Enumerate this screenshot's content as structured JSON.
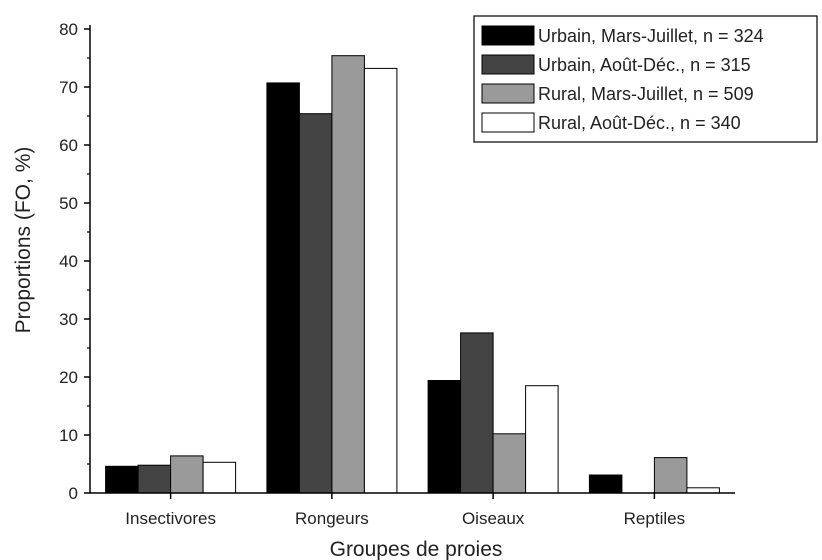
{
  "chart_data": {
    "type": "bar",
    "xlabel": "Groupes de proies",
    "ylabel": "Proportions (FO, %)",
    "ylim": [
      0,
      80
    ],
    "yticks": [
      0,
      10,
      20,
      30,
      40,
      50,
      60,
      70,
      80
    ],
    "categories": [
      "Insectivores",
      "Rongeurs",
      "Oiseaux",
      "Reptiles"
    ],
    "series": [
      {
        "name": "Urbain, Mars-Juillet, n = 324",
        "color": "#000000",
        "values": [
          4.6,
          70.7,
          19.4,
          3.1
        ]
      },
      {
        "name": "Urbain, Août-Déc., n = 315",
        "color": "#444444",
        "values": [
          4.8,
          65.4,
          27.6,
          0
        ]
      },
      {
        "name": "Rural, Mars-Juillet, n = 509",
        "color": "#9a9a9a",
        "values": [
          6.4,
          75.4,
          10.2,
          6.1
        ]
      },
      {
        "name": "Rural, Août-Déc., n = 340",
        "color": "#ffffff",
        "values": [
          5.3,
          73.2,
          18.5,
          0.9
        ]
      }
    ],
    "legend_position": "top-right",
    "grid": false
  }
}
